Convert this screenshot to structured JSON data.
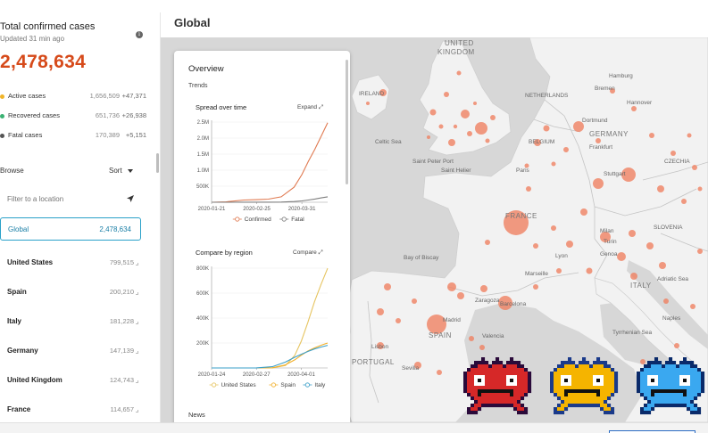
{
  "sidebar": {
    "title": "Total confirmed cases",
    "updated": "Updated 31 min ago",
    "total": "2,478,634",
    "stats": [
      {
        "label": "Active cases",
        "value": "1,656,509",
        "delta": "+47,371",
        "color": "#f0b429"
      },
      {
        "label": "Recovered cases",
        "value": "651,736",
        "delta": "+26,938",
        "color": "#3bb273"
      },
      {
        "label": "Fatal cases",
        "value": "170,389",
        "delta": "+5,151",
        "color": "#555555"
      }
    ],
    "browse_label": "Browse",
    "sort_label": "Sort",
    "filter_placeholder": "Filter to a location",
    "global": {
      "label": "Global",
      "value": "2,478,634"
    },
    "countries": [
      {
        "name": "United States",
        "value": "799,515"
      },
      {
        "name": "Spain",
        "value": "200,210"
      },
      {
        "name": "Italy",
        "value": "181,228"
      },
      {
        "name": "Germany",
        "value": "147,139"
      },
      {
        "name": "United Kingdom",
        "value": "124,743"
      },
      {
        "name": "France",
        "value": "114,657"
      }
    ]
  },
  "header": {
    "title": "Global"
  },
  "overview": {
    "title": "Overview",
    "trends_label": "Trends",
    "news_label": "News",
    "spread_chart": {
      "title": "Spread over time",
      "action": "Expand"
    },
    "compare_chart": {
      "title": "Compare by region",
      "action": "Compare"
    }
  },
  "map": {
    "labels": [
      {
        "text": "UNITED",
        "cls": "big"
      },
      {
        "text": "KINGDOM",
        "cls": "big"
      },
      {
        "text": "IRELAND",
        "cls": ""
      },
      {
        "text": "NETHERLANDS",
        "cls": ""
      },
      {
        "text": "Hamburg",
        "cls": ""
      },
      {
        "text": "Bremen",
        "cls": ""
      },
      {
        "text": "Hannover",
        "cls": ""
      },
      {
        "text": "Dortmund",
        "cls": ""
      },
      {
        "text": "GERMANY",
        "cls": "big"
      },
      {
        "text": "BELGIUM",
        "cls": ""
      },
      {
        "text": "Frankfurt",
        "cls": ""
      },
      {
        "text": "Celtic Sea",
        "cls": ""
      },
      {
        "text": "Saint Peter Port",
        "cls": ""
      },
      {
        "text": "Saint Helier",
        "cls": ""
      },
      {
        "text": "Paris",
        "cls": ""
      },
      {
        "text": "Stuttgart",
        "cls": ""
      },
      {
        "text": "CZECHIA",
        "cls": ""
      },
      {
        "text": "FRANCE",
        "cls": "big"
      },
      {
        "text": "Lyon",
        "cls": ""
      },
      {
        "text": "Turin",
        "cls": ""
      },
      {
        "text": "Milan",
        "cls": ""
      },
      {
        "text": "SLOVENIA",
        "cls": ""
      },
      {
        "text": "Genoa",
        "cls": ""
      },
      {
        "text": "Bay of Biscay",
        "cls": ""
      },
      {
        "text": "Marseille",
        "cls": ""
      },
      {
        "text": "ITALY",
        "cls": "big"
      },
      {
        "text": "Adriatic Sea",
        "cls": ""
      },
      {
        "text": "Zaragoza",
        "cls": ""
      },
      {
        "text": "Barcelona",
        "cls": ""
      },
      {
        "text": "Madrid",
        "cls": ""
      },
      {
        "text": "SPAIN",
        "cls": "big"
      },
      {
        "text": "Lisbon",
        "cls": ""
      },
      {
        "text": "PORTUGAL",
        "cls": "big"
      },
      {
        "text": "Valencia",
        "cls": ""
      },
      {
        "text": "Sevilla",
        "cls": ""
      },
      {
        "text": "Tyrrhenian Sea",
        "cls": ""
      },
      {
        "text": "Naples",
        "cls": ""
      }
    ]
  },
  "colors": {
    "accent": "#d64a1a",
    "bubble": "#f07f5f",
    "confirmed_line": "#e07a51",
    "fatal_line": "#7d7d7d",
    "us_line": "#e6c460",
    "spain_line": "#f2b02c",
    "italy_line": "#3a9fc9",
    "selection": "#2aa1c9"
  },
  "chart_data": [
    {
      "type": "line",
      "title": "Spread over time",
      "x_ticks": [
        "2020-01-21",
        "2020-02-25",
        "2020-03-31"
      ],
      "y_ticks": [
        "2.5M",
        "2.0M",
        "1.5M",
        "1.0M",
        "500K"
      ],
      "ylim": [
        0,
        2500000
      ],
      "x": [
        "2020-01-21",
        "2020-02-01",
        "2020-02-15",
        "2020-02-25",
        "2020-03-05",
        "2020-03-15",
        "2020-03-25",
        "2020-03-31",
        "2020-04-05",
        "2020-04-10",
        "2020-04-15",
        "2020-04-20"
      ],
      "series": [
        {
          "name": "Confirmed",
          "values": [
            600,
            12000,
            69000,
            81000,
            98000,
            170000,
            470000,
            860000,
            1270000,
            1650000,
            2060000,
            2478634
          ]
        },
        {
          "name": "Fatal",
          "values": [
            17,
            260,
            1600,
            2700,
            3400,
            6500,
            22000,
            43000,
            70000,
            100000,
            135000,
            170389
          ]
        }
      ],
      "legend_position": "bottom"
    },
    {
      "type": "line",
      "title": "Compare by region",
      "x_ticks": [
        "2020-01-24",
        "2020-02-27",
        "2020-04-01"
      ],
      "y_ticks": [
        "800K",
        "600K",
        "400K",
        "200K"
      ],
      "ylim": [
        0,
        800000
      ],
      "x": [
        "2020-01-24",
        "2020-02-10",
        "2020-02-27",
        "2020-03-10",
        "2020-03-20",
        "2020-03-27",
        "2020-04-01",
        "2020-04-06",
        "2020-04-11",
        "2020-04-16",
        "2020-04-21"
      ],
      "series": [
        {
          "name": "United States",
          "values": [
            1,
            12,
            60,
            1000,
            19000,
            100000,
            215000,
            365000,
            530000,
            670000,
            799515
          ]
        },
        {
          "name": "Spain",
          "values": [
            0,
            2,
            20,
            1700,
            25000,
            65000,
            102000,
            136000,
            161000,
            182000,
            200210
          ]
        },
        {
          "name": "Italy",
          "values": [
            0,
            3,
            650,
            10000,
            47000,
            86000,
            110000,
            132000,
            152000,
            168000,
            181228
          ]
        }
      ],
      "legend_position": "bottom"
    }
  ]
}
